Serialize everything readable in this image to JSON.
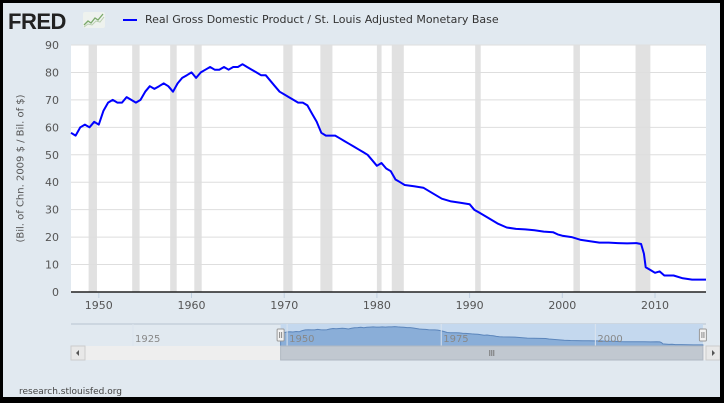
{
  "header": {
    "logo_text": "FRED",
    "logo_icon": "line-chart-icon",
    "legend_label": "Real Gross Domestic Product / St. Louis Adjusted Monetary Base",
    "legend_color": "#0000ff"
  },
  "axes": {
    "ylabel": "(Bil. of Chn. 2009 $ / Bil. of $)"
  },
  "navigator": {
    "labels": [
      "1925",
      "1950",
      "1975",
      "2000"
    ],
    "scroll_left_icon": "arrow-left-icon",
    "scroll_right_icon": "arrow-right-icon",
    "scroll_grip_icon": "grip-icon"
  },
  "footer": {
    "source": "research.stlouisfed.org"
  },
  "chart_data": {
    "type": "line",
    "title": "Real Gross Domestic Product / St. Louis Adjusted Monetary Base",
    "xlabel": "",
    "ylabel": "(Bil. of Chn. 2009 $ / Bil. of $)",
    "xlim": [
      1947,
      2015.5
    ],
    "ylim": [
      0,
      90
    ],
    "yticks": [
      0,
      10,
      20,
      30,
      40,
      50,
      60,
      70,
      80,
      90
    ],
    "xticks": [
      1950,
      1960,
      1970,
      1980,
      1990,
      2000,
      2010
    ],
    "grid": true,
    "legend_position": "top",
    "series": [
      {
        "name": "Real Gross Domestic Product / St. Louis Adjusted Monetary Base",
        "color": "#0000ff",
        "x": [
          1947.0,
          1947.5,
          1948.0,
          1948.5,
          1949.0,
          1949.5,
          1950.0,
          1950.5,
          1951.0,
          1951.5,
          1952.0,
          1952.5,
          1953.0,
          1953.5,
          1954.0,
          1954.5,
          1955.0,
          1955.5,
          1956.0,
          1956.5,
          1957.0,
          1957.5,
          1958.0,
          1958.5,
          1959.0,
          1959.5,
          1960.0,
          1960.5,
          1961.0,
          1961.5,
          1962.0,
          1962.5,
          1963.0,
          1963.5,
          1964.0,
          1964.5,
          1965.0,
          1965.5,
          1966.0,
          1966.5,
          1967.0,
          1967.5,
          1968.0,
          1968.5,
          1969.0,
          1969.5,
          1970.0,
          1970.5,
          1971.0,
          1971.5,
          1972.0,
          1972.5,
          1973.0,
          1973.5,
          1974.0,
          1974.5,
          1975.0,
          1975.5,
          1976.0,
          1976.5,
          1977.0,
          1977.5,
          1978.0,
          1978.5,
          1979.0,
          1979.5,
          1980.0,
          1980.5,
          1981.0,
          1981.5,
          1982.0,
          1982.5,
          1983.0,
          1984.0,
          1985.0,
          1986.0,
          1987.0,
          1988.0,
          1989.0,
          1990.0,
          1990.5,
          1991.0,
          1992.0,
          1993.0,
          1994.0,
          1995.0,
          1996.0,
          1997.0,
          1998.0,
          1999.0,
          1999.5,
          2000.0,
          2001.0,
          2002.0,
          2003.0,
          2004.0,
          2005.0,
          2006.0,
          2007.0,
          2008.0,
          2008.5,
          2008.8,
          2009.0,
          2009.5,
          2010.0,
          2010.5,
          2011.0,
          2012.0,
          2013.0,
          2014.0,
          2015.0,
          2015.5
        ],
        "values": [
          58,
          57,
          60,
          61,
          60,
          62,
          61,
          66,
          69,
          70,
          69,
          69,
          71,
          70,
          69,
          70,
          73,
          75,
          74,
          75,
          76,
          75,
          73,
          76,
          78,
          79,
          80,
          78,
          80,
          81,
          82,
          81,
          81,
          82,
          81,
          82,
          82,
          83,
          82,
          81,
          80,
          79,
          79,
          77,
          75,
          73,
          72,
          71,
          70,
          69,
          69,
          68,
          65,
          62,
          58,
          57,
          57,
          57,
          56,
          55,
          54,
          53,
          52,
          51,
          50,
          48,
          46,
          47,
          45,
          44,
          41,
          40,
          39,
          38.5,
          38,
          36,
          34,
          33,
          32.5,
          32,
          30,
          29,
          27,
          25,
          23.5,
          23,
          22.8,
          22.5,
          22,
          21.8,
          21,
          20.5,
          20,
          19,
          18.5,
          18,
          18,
          17.8,
          17.7,
          17.8,
          17.5,
          14,
          9,
          8,
          7,
          7.5,
          6,
          6,
          5,
          4.5,
          4.5,
          4.5
        ],
        "recessions": [
          [
            1948.9,
            1949.8
          ],
          [
            1953.6,
            1954.4
          ],
          [
            1957.7,
            1958.4
          ],
          [
            1960.3,
            1961.1
          ],
          [
            1969.9,
            1970.9
          ],
          [
            1973.9,
            1975.2
          ],
          [
            1980.0,
            1980.5
          ],
          [
            1981.6,
            1982.9
          ],
          [
            1990.6,
            1991.2
          ],
          [
            2001.2,
            2001.9
          ],
          [
            2007.9,
            2009.5
          ]
        ]
      }
    ]
  }
}
